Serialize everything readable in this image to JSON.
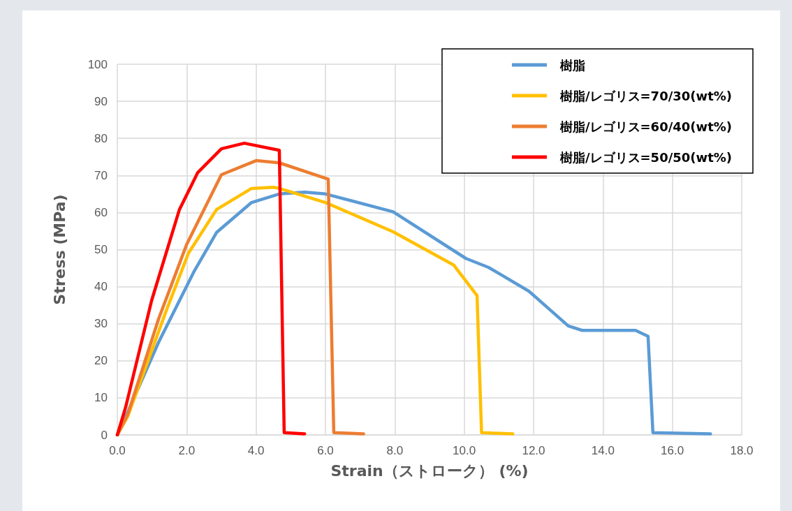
{
  "chart_data": {
    "type": "line",
    "xlabel": "Strain（ストローク） (%)",
    "ylabel": "Stress (MPa)",
    "xlim": [
      0,
      18
    ],
    "ylim": [
      0,
      100
    ],
    "xticks": [
      {
        "value": 0,
        "label": "0.0"
      },
      {
        "value": 2,
        "label": "2.0"
      },
      {
        "value": 4,
        "label": "4.0"
      },
      {
        "value": 6,
        "label": "6.0"
      },
      {
        "value": 8,
        "label": "8.0"
      },
      {
        "value": 10,
        "label": "10.0"
      },
      {
        "value": 12,
        "label": "12.0"
      },
      {
        "value": 14,
        "label": "14.0"
      },
      {
        "value": 16,
        "label": "16.0"
      },
      {
        "value": 18,
        "label": "18.0"
      }
    ],
    "yticks": [
      0,
      10,
      20,
      30,
      40,
      50,
      60,
      70,
      80,
      90,
      100
    ],
    "grid": true,
    "legend": "top right",
    "marker": "none",
    "line_style": "solid",
    "series": [
      {
        "name": "樹脂",
        "color": "#5b9bd5",
        "x": [
          0,
          0.24,
          1.19,
          2.2,
          2.86,
          3.87,
          4.67,
          5.4,
          6.0,
          7.95,
          10.05,
          10.7,
          11.1,
          11.86,
          13.0,
          13.4,
          14.94,
          15.3,
          15.44,
          17.1
        ],
        "values": [
          0,
          4.9,
          25,
          43.9,
          54.6,
          62.7,
          65,
          65.5,
          65,
          60.2,
          47.6,
          45.2,
          43,
          38.8,
          29.4,
          28.2,
          28.2,
          26.6,
          0.6,
          0.3
        ]
      },
      {
        "name": "樹脂/レゴリス=70/30(wt%)",
        "color": "#ffc000",
        "x": [
          0,
          0.3,
          1.39,
          2.05,
          2.86,
          3.87,
          4.5,
          4.67,
          6.0,
          7.95,
          9.7,
          10.37,
          10.5,
          11.4
        ],
        "values": [
          0,
          5,
          33,
          49,
          60.8,
          66.5,
          66.8,
          66.5,
          62.7,
          54.8,
          45.8,
          37.6,
          0.6,
          0.3
        ]
      },
      {
        "name": "樹脂/レゴリス=60/40(wt%)",
        "color": "#ed7d31",
        "x": [
          0,
          0.3,
          1.19,
          2.0,
          3.0,
          4.0,
          4.67,
          6.08,
          6.24,
          7.1
        ],
        "values": [
          0,
          5.5,
          31.3,
          51.4,
          70.2,
          74,
          73.4,
          69,
          0.6,
          0.3
        ]
      },
      {
        "name": "樹脂/レゴリス=50/50(wt%)",
        "color": "#ff0000",
        "x": [
          0,
          0.24,
          0.99,
          1.79,
          2.32,
          3.0,
          3.66,
          4.67,
          4.81,
          5.4
        ],
        "values": [
          0,
          7.5,
          36.3,
          60.8,
          70.8,
          77.2,
          78.7,
          76.8,
          0.6,
          0.3
        ]
      }
    ]
  }
}
